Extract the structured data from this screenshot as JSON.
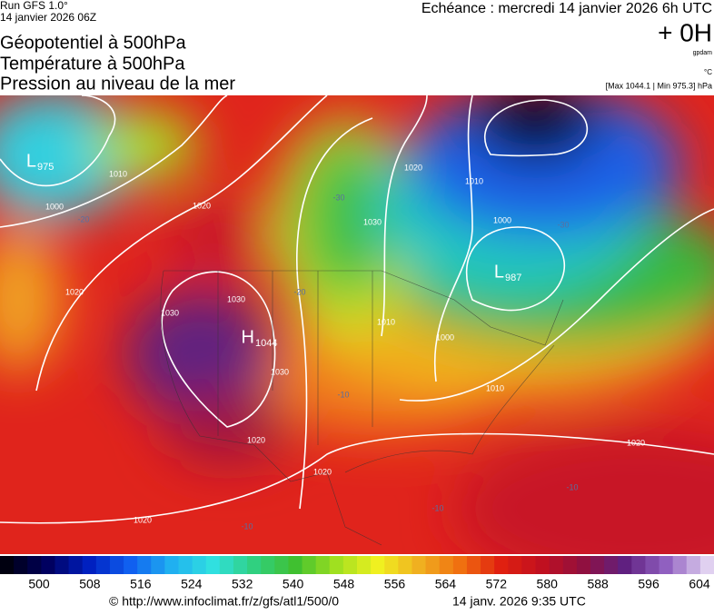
{
  "header": {
    "run": "Run GFS 1.0°",
    "date": "14 janvier 2026 06Z",
    "echeance": "Echéance : mercredi 14 janvier 2026 6h UTC",
    "lead": "+ 0H",
    "unit_gpdam": "gpdam",
    "unit_temp": "°C",
    "range": "[Max 1044.1 | Min 975.3] hPa"
  },
  "titles": [
    "Géopotentiel à 500hPa",
    "Température à 500hPa",
    "Pression au niveau de la mer"
  ],
  "map": {
    "centers": [
      {
        "letter": "L",
        "value": "975"
      },
      {
        "letter": "L",
        "value": "987"
      },
      {
        "letter": "H",
        "value": "1044"
      }
    ],
    "isobar_labels": [
      "1010",
      "1000",
      "1020",
      "1020",
      "1030",
      "1030",
      "1030",
      "1020",
      "1010",
      "1000",
      "1010",
      "1000",
      "1010",
      "1030",
      "1020",
      "1020",
      "1020",
      "1020"
    ],
    "temperature_labels": [
      "-30",
      "-30",
      "-20",
      "-20",
      "-10",
      "-10",
      "-10",
      "-10"
    ]
  },
  "colorbar": {
    "ticks": [
      500,
      508,
      516,
      524,
      532,
      540,
      548,
      556,
      564,
      572,
      580,
      588,
      596,
      604
    ]
  },
  "footer": {
    "url": "© http://www.infoclimat.fr/z/gfs/atl1/500/0",
    "time": "14 janv. 2026  9:35 UTC"
  }
}
